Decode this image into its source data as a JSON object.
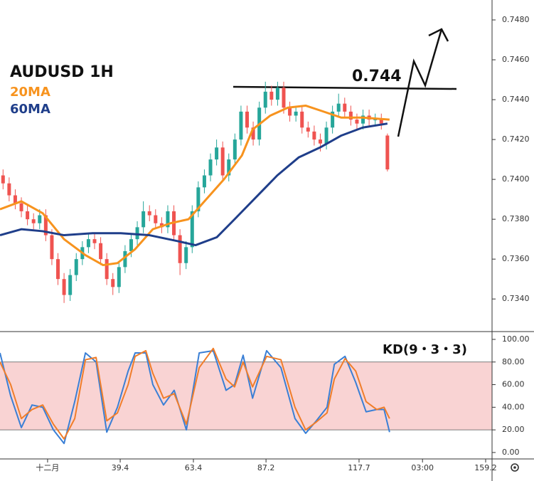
{
  "chart_data": [
    {
      "type": "candlestick",
      "title": "AUDUSD 1H",
      "annotations": [
        "0.744"
      ],
      "up_color": "#26a69a",
      "down_color": "#ef5350",
      "x": [
        1,
        3,
        5,
        7,
        9,
        11,
        13,
        15,
        17,
        19,
        21,
        23,
        25,
        27,
        29,
        31,
        33,
        35,
        37,
        39,
        41,
        43,
        45,
        47,
        49,
        51,
        53,
        55,
        57,
        59,
        61,
        63,
        65,
        67,
        69,
        71,
        73,
        75,
        77,
        79,
        81,
        83,
        85,
        87,
        89,
        91,
        93,
        95,
        97,
        99,
        101,
        103,
        105,
        107,
        109,
        111,
        113,
        115,
        117,
        119,
        121,
        123,
        125,
        127
      ],
      "open": [
        0.7402,
        0.7398,
        0.7392,
        0.7388,
        0.7384,
        0.738,
        0.7378,
        0.7382,
        0.7372,
        0.736,
        0.735,
        0.7342,
        0.7352,
        0.736,
        0.7366,
        0.737,
        0.7368,
        0.736,
        0.735,
        0.7346,
        0.7356,
        0.7364,
        0.737,
        0.7376,
        0.7384,
        0.7382,
        0.7378,
        0.7376,
        0.7384,
        0.7372,
        0.7358,
        0.7366,
        0.7384,
        0.7396,
        0.7402,
        0.741,
        0.7416,
        0.7402,
        0.741,
        0.742,
        0.7434,
        0.7426,
        0.742,
        0.7436,
        0.7444,
        0.744,
        0.7446,
        0.7436,
        0.7432,
        0.7434,
        0.7426,
        0.7424,
        0.742,
        0.7418,
        0.7426,
        0.7434,
        0.7438,
        0.7434,
        0.743,
        0.7428,
        0.7432,
        0.743,
        0.743,
        0.7422
      ],
      "high": [
        0.7405,
        0.7401,
        0.7395,
        0.7391,
        0.7387,
        0.7383,
        0.7385,
        0.7385,
        0.7375,
        0.7363,
        0.7353,
        0.7355,
        0.7363,
        0.7369,
        0.7373,
        0.7373,
        0.7371,
        0.7363,
        0.7353,
        0.7359,
        0.7367,
        0.7373,
        0.7379,
        0.7389,
        0.7387,
        0.7385,
        0.7381,
        0.7387,
        0.7387,
        0.7375,
        0.7369,
        0.7387,
        0.7399,
        0.7405,
        0.7413,
        0.742,
        0.7419,
        0.7413,
        0.7423,
        0.7437,
        0.7437,
        0.7429,
        0.7439,
        0.7449,
        0.7447,
        0.7449,
        0.7449,
        0.7439,
        0.7437,
        0.7437,
        0.7429,
        0.7427,
        0.7423,
        0.7429,
        0.7437,
        0.7443,
        0.7441,
        0.7437,
        0.7433,
        0.7435,
        0.7435,
        0.7433,
        0.7433,
        0.7423
      ],
      "low": [
        0.7395,
        0.7389,
        0.7385,
        0.7381,
        0.7377,
        0.7375,
        0.7375,
        0.7369,
        0.7357,
        0.7347,
        0.7338,
        0.7339,
        0.7349,
        0.7357,
        0.7363,
        0.7365,
        0.7357,
        0.7347,
        0.7342,
        0.7343,
        0.7353,
        0.7361,
        0.7367,
        0.7373,
        0.7379,
        0.7375,
        0.7373,
        0.7373,
        0.7369,
        0.7352,
        0.7355,
        0.7363,
        0.7381,
        0.7393,
        0.7399,
        0.7407,
        0.7399,
        0.7399,
        0.7407,
        0.7417,
        0.7423,
        0.7417,
        0.7417,
        0.7433,
        0.7437,
        0.7437,
        0.7433,
        0.7429,
        0.7429,
        0.7423,
        0.7421,
        0.7417,
        0.7414,
        0.7415,
        0.7423,
        0.7431,
        0.7431,
        0.7427,
        0.7425,
        0.7425,
        0.7427,
        0.7427,
        0.7425,
        0.7404
      ],
      "close": [
        0.7398,
        0.7392,
        0.7388,
        0.7384,
        0.738,
        0.7378,
        0.7382,
        0.7372,
        0.736,
        0.735,
        0.7342,
        0.7352,
        0.736,
        0.7366,
        0.737,
        0.7368,
        0.736,
        0.735,
        0.7346,
        0.7356,
        0.7364,
        0.737,
        0.7376,
        0.7384,
        0.7382,
        0.7378,
        0.7376,
        0.7384,
        0.7372,
        0.7358,
        0.7366,
        0.7384,
        0.7396,
        0.7402,
        0.741,
        0.7416,
        0.7402,
        0.741,
        0.742,
        0.7434,
        0.7426,
        0.742,
        0.7436,
        0.7444,
        0.744,
        0.7446,
        0.7436,
        0.7432,
        0.7434,
        0.7426,
        0.7424,
        0.742,
        0.7418,
        0.7426,
        0.7434,
        0.7438,
        0.7434,
        0.743,
        0.7428,
        0.7432,
        0.743,
        0.743,
        0.7428,
        0.7405
      ],
      "series": [
        {
          "name": "20MA",
          "color": "#f7931e",
          "x": [
            0,
            7,
            14,
            21,
            28,
            33.8,
            38.5,
            44.3,
            50.1,
            55.9,
            61.8,
            67.6,
            73.4,
            79.3,
            82.8,
            88.6,
            94.4,
            100.2,
            106.1,
            111.9,
            118.9,
            127.7
          ],
          "values": [
            0.7385,
            0.7389,
            0.7383,
            0.737,
            0.7362,
            0.7357,
            0.7358,
            0.7365,
            0.7375,
            0.7378,
            0.738,
            0.739,
            0.74,
            0.7412,
            0.7425,
            0.7432,
            0.7436,
            0.7437,
            0.7434,
            0.7431,
            0.7431,
            0.743
          ]
        },
        {
          "name": "60MA",
          "color": "#1f3e8a",
          "x": [
            0,
            7,
            14,
            21,
            30.3,
            39.6,
            49,
            58.3,
            64.1,
            71.1,
            76.9,
            83.9,
            90.9,
            97.9,
            104.9,
            111.9,
            118.9,
            127
          ],
          "values": [
            0.7372,
            0.7375,
            0.7374,
            0.7372,
            0.7373,
            0.7373,
            0.7372,
            0.7369,
            0.7367,
            0.7371,
            0.738,
            0.7391,
            0.7402,
            0.7411,
            0.7416,
            0.7422,
            0.7426,
            0.7428
          ]
        }
      ],
      "xlim": [
        0,
        161.3
      ],
      "xticks": [
        {
          "value": 15.6,
          "label": "十二月"
        },
        39.4,
        63.4,
        87.2,
        117.7,
        {
          "value": 138.5,
          "label": "03:00"
        },
        159.2
      ],
      "ylim": [
        0.7324,
        0.749
      ],
      "yticks": [
        {
          "value": 0.734,
          "label": "0.7340"
        },
        {
          "value": 0.736,
          "label": "0.7360"
        },
        {
          "value": 0.738,
          "label": "0.7380"
        },
        {
          "value": 0.74,
          "label": "0.7400"
        },
        {
          "value": 0.742,
          "label": "0.7420"
        },
        {
          "value": 0.744,
          "label": "0.7440"
        },
        {
          "value": 0.746,
          "label": "0.7460"
        },
        {
          "value": 0.748,
          "label": "0.7480"
        }
      ]
    },
    {
      "type": "line",
      "title": "KD(9・3・3)",
      "band": [
        20,
        80
      ],
      "band_color": "#f9d3d3",
      "x": [
        0,
        3.5,
        7,
        10.5,
        14,
        17.5,
        21,
        24.5,
        28,
        31.5,
        35,
        38.5,
        42,
        44.3,
        47.8,
        50.1,
        53.6,
        57.1,
        61.1,
        65.3,
        69.9,
        74.1,
        76.9,
        79.7,
        82.8,
        87.4,
        92.1,
        96.7,
        100.2,
        103.7,
        107.2,
        109.6,
        113.1,
        116.6,
        120,
        123.5,
        125.9,
        127.7
      ],
      "series": [
        {
          "color": "#3a7fd5",
          "values": [
            88,
            50,
            22,
            42,
            40,
            20,
            8,
            45,
            88,
            80,
            18,
            40,
            72,
            88,
            88,
            60,
            42,
            55,
            20,
            88,
            90,
            55,
            60,
            86,
            48,
            90,
            75,
            30,
            17,
            28,
            40,
            78,
            85,
            62,
            36,
            38,
            38,
            18
          ]
        },
        {
          "color": "#f07d2a",
          "values": [
            80,
            60,
            30,
            38,
            42,
            25,
            12,
            30,
            82,
            84,
            28,
            35,
            60,
            85,
            90,
            70,
            48,
            52,
            25,
            75,
            92,
            65,
            58,
            80,
            58,
            85,
            82,
            40,
            20,
            27,
            35,
            65,
            83,
            72,
            45,
            38,
            40,
            30
          ]
        }
      ],
      "ylim": [
        -5.7,
        106.9
      ],
      "yticks": [
        {
          "value": 0,
          "label": "0.00"
        },
        {
          "value": 20,
          "label": "20.00"
        },
        {
          "value": 40,
          "label": "40.00"
        },
        {
          "value": 60,
          "label": "60.00"
        },
        {
          "value": 80,
          "label": "80.00"
        },
        {
          "value": 100,
          "label": "100.00"
        }
      ]
    }
  ]
}
